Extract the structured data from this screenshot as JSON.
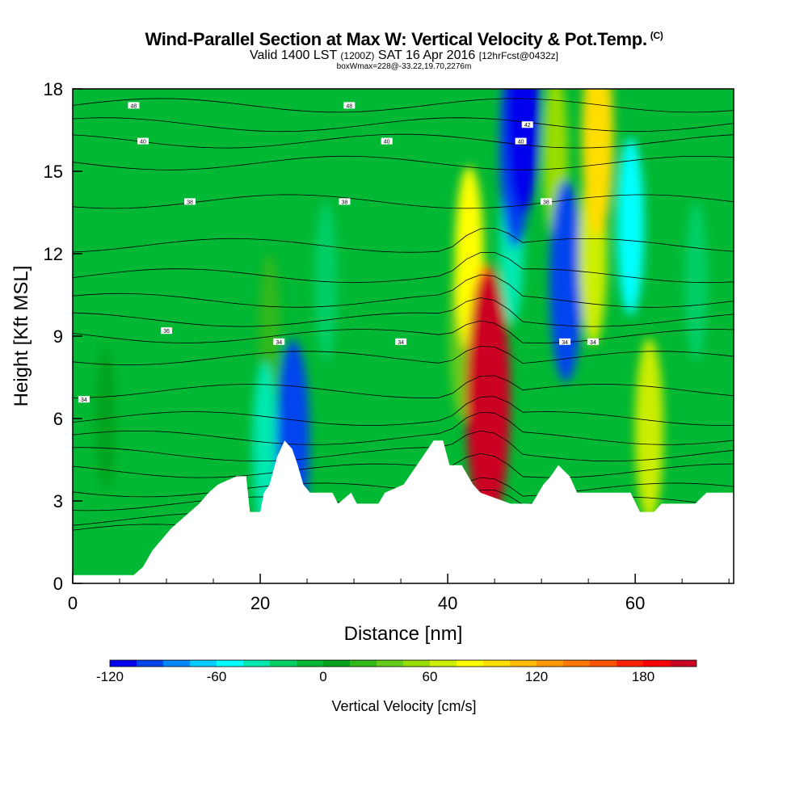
{
  "header": {
    "title": "Wind-Parallel Section at Max W: Vertical Velocity & Pot.Temp.",
    "title_tag": "(C)",
    "valid_prefix": "Valid 1400 LST",
    "valid_utc": "(1200Z)",
    "valid_date": "SAT 16 Apr 2016",
    "forecast": "[12hrFcst@0432z]",
    "box_info": "boxWmax=228@-33.22,19.70,2276m"
  },
  "chart_data": {
    "type": "heatmap",
    "title": "Wind-Parallel Section at Max W: Vertical Velocity & Pot.Temp.",
    "xlabel": "Distance [nm]",
    "ylabel": "Height [Kft MSL]",
    "xlim": [
      0,
      70.5
    ],
    "ylim": [
      0,
      18
    ],
    "x_ticks": [
      0,
      20,
      40,
      60
    ],
    "y_ticks": [
      0,
      3,
      6,
      9,
      12,
      15,
      18
    ],
    "terrain_heights_kft": [
      [
        0,
        0.3
      ],
      [
        6.5,
        0.3
      ],
      [
        7.5,
        0.6
      ],
      [
        8.5,
        1.2
      ],
      [
        9.5,
        1.6
      ],
      [
        10.5,
        2.0
      ],
      [
        11.5,
        2.3
      ],
      [
        12.5,
        2.6
      ],
      [
        13.5,
        2.9
      ],
      [
        14.5,
        3.3
      ],
      [
        15.5,
        3.6
      ],
      [
        17.5,
        3.9
      ],
      [
        18.5,
        3.9
      ],
      [
        18.9,
        2.6
      ],
      [
        20.0,
        2.6
      ],
      [
        20.4,
        3.3
      ],
      [
        21.0,
        3.6
      ],
      [
        21.8,
        4.6
      ],
      [
        22.6,
        5.2
      ],
      [
        23.4,
        4.9
      ],
      [
        24.0,
        4.3
      ],
      [
        24.6,
        3.6
      ],
      [
        25.3,
        3.3
      ],
      [
        27.7,
        3.3
      ],
      [
        28.3,
        2.9
      ],
      [
        29.7,
        3.3
      ],
      [
        30.3,
        2.9
      ],
      [
        32.6,
        2.9
      ],
      [
        33.3,
        3.3
      ],
      [
        35.3,
        3.6
      ],
      [
        37.3,
        4.6
      ],
      [
        38.5,
        5.2
      ],
      [
        39.5,
        5.2
      ],
      [
        40.2,
        4.3
      ],
      [
        41.5,
        4.3
      ],
      [
        42.7,
        3.6
      ],
      [
        43.5,
        3.3
      ],
      [
        46.7,
        2.9
      ],
      [
        49.0,
        2.9
      ],
      [
        50.2,
        3.6
      ],
      [
        51.0,
        3.9
      ],
      [
        51.8,
        4.3
      ],
      [
        53.0,
        3.9
      ],
      [
        53.8,
        3.3
      ],
      [
        59.5,
        3.3
      ],
      [
        60.5,
        2.6
      ],
      [
        62.0,
        2.6
      ],
      [
        62.8,
        2.9
      ],
      [
        66.4,
        2.9
      ],
      [
        67.6,
        3.3
      ],
      [
        70.5,
        3.3
      ]
    ],
    "vertical_velocity_cells_cms": [
      {
        "x": 3.5,
        "height_kft": 6.0,
        "value": 0
      },
      {
        "x": 21,
        "height_kft": 9.2,
        "value": 15
      },
      {
        "x": 20.5,
        "height_kft": 5.0,
        "value": -45
      },
      {
        "x": 23.5,
        "height_kft": 5.2,
        "value": -105
      },
      {
        "x": 27,
        "height_kft": 11.0,
        "value": -25
      },
      {
        "x": 41.5,
        "height_kft": 9.0,
        "value": 40
      },
      {
        "x": 42.3,
        "height_kft": 11.8,
        "value": 75
      },
      {
        "x": 44.2,
        "height_kft": 7.5,
        "value": 150
      },
      {
        "x": 44.3,
        "height_kft": 6.7,
        "value": 195
      },
      {
        "x": 46.8,
        "height_kft": 12.5,
        "value": -45
      },
      {
        "x": 47.2,
        "height_kft": 15.8,
        "value": -95
      },
      {
        "x": 48.0,
        "height_kft": 17.2,
        "value": -115
      },
      {
        "x": 51.5,
        "height_kft": 15.5,
        "value": 45
      },
      {
        "x": 52.6,
        "height_kft": 11.0,
        "value": -105
      },
      {
        "x": 55.5,
        "height_kft": 12.0,
        "value": 70
      },
      {
        "x": 56.0,
        "height_kft": 16.2,
        "value": 95
      },
      {
        "x": 59.5,
        "height_kft": 13.0,
        "value": -60
      },
      {
        "x": 61.5,
        "height_kft": 5.6,
        "value": 70
      },
      {
        "x": 66.5,
        "height_kft": 11.0,
        "value": -25
      }
    ],
    "pot_temp_contours": [
      {
        "label": "48",
        "height_kft": 17.4,
        "label_x": [
          6.5,
          29.5
        ]
      },
      {
        "label": "42",
        "height_kft": 16.7,
        "label_x": [
          48.5
        ]
      },
      {
        "label": "40",
        "height_kft": 16.1,
        "label_x": [
          7.5,
          33.5,
          47.8
        ]
      },
      {
        "label": "38",
        "height_kft": 13.9,
        "label_x": [
          12.5,
          29,
          50.5
        ]
      },
      {
        "label": "36",
        "height_kft": 9.2,
        "label_x": [
          10
        ]
      },
      {
        "label": "34",
        "height_kft": 8.8,
        "label_x": [
          35,
          52.5,
          55.5,
          22
        ]
      },
      {
        "label": "34",
        "height_kft": 6.7,
        "label_x": [
          1.2
        ]
      }
    ],
    "colorbar": {
      "label": "Vertical Velocity [cm/s]",
      "ticks": [
        -120,
        -60,
        0,
        60,
        120,
        180
      ],
      "bounds": [
        -120,
        -105,
        -90,
        -75,
        -60,
        -45,
        -30,
        -15,
        0,
        15,
        30,
        45,
        60,
        75,
        90,
        105,
        120,
        135,
        150,
        165,
        180,
        195,
        210
      ],
      "colors": [
        "#0000ee",
        "#0044ee",
        "#0088ff",
        "#00ccff",
        "#00ffff",
        "#00e8b0",
        "#00cf66",
        "#00b833",
        "#00a31a",
        "#33b81a",
        "#66cc1a",
        "#99dd00",
        "#ccee00",
        "#ffff00",
        "#ffdd00",
        "#ffbb00",
        "#ff9900",
        "#ff7700",
        "#ff5500",
        "#ff2200",
        "#ff0000",
        "#cc0022"
      ]
    }
  }
}
